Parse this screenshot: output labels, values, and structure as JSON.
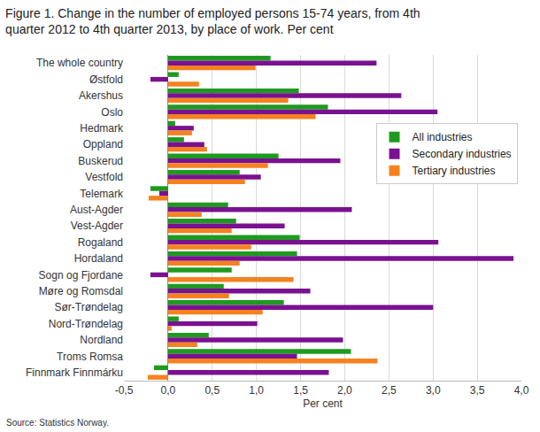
{
  "chart_data": {
    "type": "bar",
    "orientation": "horizontal",
    "title": "Figure 1. Change in the number of employed persons 15-74 years, from 4th\nquarter 2012 to 4th quarter 2013, by place of work. Per cent",
    "x_label": "Per cent",
    "source": "Source: Statistics Norway.",
    "categories": [
      "The whole country",
      "Østfold",
      "Akershus",
      "Oslo",
      "Hedmark",
      "Oppland",
      "Buskerud",
      "Vestfold",
      "Telemark",
      "Aust-Agder",
      "Vest-Agder",
      "Rogaland",
      "Hordaland",
      "Sogn og Fjordane",
      "Møre og Romsdal",
      "Sør-Trøndelag",
      "Nord-Trøndelag",
      "Nordland",
      "Troms Romsa",
      "Finnmark Finnmárku"
    ],
    "series": [
      {
        "name": "All industries",
        "color": "#1e9a1e",
        "values": [
          1.16,
          0.12,
          1.48,
          1.81,
          0.08,
          0.18,
          1.25,
          0.81,
          -0.2,
          0.68,
          0.77,
          1.49,
          1.46,
          0.72,
          0.63,
          1.31,
          0.12,
          0.46,
          2.07,
          -0.16
        ]
      },
      {
        "name": "Secondary industries",
        "color": "#7a1190",
        "values": [
          2.36,
          -0.2,
          2.64,
          3.05,
          0.29,
          0.41,
          1.95,
          1.05,
          -0.1,
          2.08,
          1.32,
          3.06,
          3.91,
          -0.2,
          1.61,
          3.0,
          1.01,
          1.98,
          1.46,
          1.82
        ]
      },
      {
        "name": "Tertiary industries",
        "color": "#f5821f",
        "values": [
          0.99,
          0.35,
          1.36,
          1.67,
          0.27,
          0.44,
          1.13,
          0.87,
          -0.22,
          0.38,
          0.72,
          0.94,
          0.81,
          1.42,
          0.69,
          1.07,
          0.04,
          0.33,
          2.37,
          -0.23
        ]
      }
    ],
    "xlim": [
      -0.5,
      4.0
    ],
    "xticks": [
      {
        "value": -0.5,
        "label": "-0,5"
      },
      {
        "value": 0,
        "label": "0,0"
      },
      {
        "value": 0.5,
        "label": "0,5"
      },
      {
        "value": 1.0,
        "label": "1,0"
      },
      {
        "value": 1.5,
        "label": "1,5"
      },
      {
        "value": 2.0,
        "label": "2,0"
      },
      {
        "value": 2.5,
        "label": "2,5"
      },
      {
        "value": 3.0,
        "label": "3,0"
      },
      {
        "value": 3.5,
        "label": "3,5"
      },
      {
        "value": 4.0,
        "label": "4,0"
      }
    ],
    "grid": true,
    "legend": "upper right"
  }
}
